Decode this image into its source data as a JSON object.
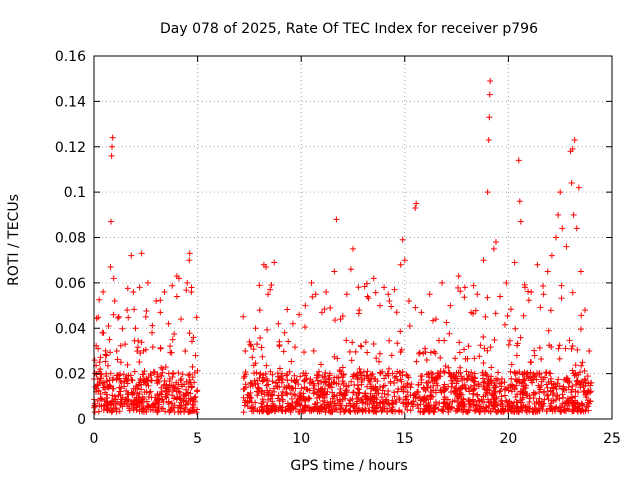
{
  "chart_data": {
    "type": "scatter",
    "title": "Day 078 of 2025, Rate Of TEC Index for receiver p796",
    "xlabel": "GPS time / hours",
    "ylabel": "ROTI / TECUs",
    "xlim": [
      0,
      25
    ],
    "ylim": [
      0,
      0.16
    ],
    "grid": true,
    "marker": "+",
    "color": "#ff0000",
    "x_ticks": [
      {
        "value": 0,
        "label": "0"
      },
      {
        "value": 5,
        "label": "5"
      },
      {
        "value": 10,
        "label": "10"
      },
      {
        "value": 15,
        "label": "15"
      },
      {
        "value": 20,
        "label": "20"
      },
      {
        "value": 25,
        "label": "25"
      }
    ],
    "y_ticks": [
      {
        "value": 0,
        "label": "0"
      },
      {
        "value": 0.02,
        "label": "0.02"
      },
      {
        "value": 0.04,
        "label": "0.04"
      },
      {
        "value": 0.06,
        "label": "0.06"
      },
      {
        "value": 0.08,
        "label": "0.08"
      },
      {
        "value": 0.1,
        "label": "0.1"
      },
      {
        "value": 0.12,
        "label": "0.12"
      },
      {
        "value": 0.14,
        "label": "0.14"
      },
      {
        "value": 0.16,
        "label": "0.16"
      }
    ],
    "series": [
      {
        "name": "ROTI",
        "segments": [
          [
            0.0,
            5.0
          ],
          [
            7.2,
            24.0
          ]
        ],
        "points": [
          [
            0.1,
            0.012
          ],
          [
            0.2,
            0.031
          ],
          [
            0.3,
            0.022
          ],
          [
            0.4,
            0.038
          ],
          [
            0.5,
            0.015
          ],
          [
            0.6,
            0.028
          ],
          [
            0.7,
            0.041
          ],
          [
            0.75,
            0.035
          ],
          [
            0.8,
            0.067
          ],
          [
            0.82,
            0.087
          ],
          [
            0.85,
            0.116
          ],
          [
            0.87,
            0.12
          ],
          [
            0.9,
            0.124
          ],
          [
            0.95,
            0.062
          ],
          [
            1.0,
            0.052
          ],
          [
            1.1,
            0.03
          ],
          [
            1.2,
            0.045
          ],
          [
            1.3,
            0.025
          ],
          [
            1.5,
            0.033
          ],
          [
            1.6,
            0.048
          ],
          [
            1.8,
            0.072
          ],
          [
            1.9,
            0.056
          ],
          [
            2.0,
            0.04
          ],
          [
            2.2,
            0.058
          ],
          [
            2.3,
            0.073
          ],
          [
            2.5,
            0.045
          ],
          [
            2.6,
            0.06
          ],
          [
            2.8,
            0.038
          ],
          [
            3.0,
            0.052
          ],
          [
            3.2,
            0.047
          ],
          [
            3.4,
            0.056
          ],
          [
            3.6,
            0.042
          ],
          [
            3.8,
            0.035
          ],
          [
            4.0,
            0.063
          ],
          [
            4.1,
            0.062
          ],
          [
            4.2,
            0.044
          ],
          [
            4.4,
            0.03
          ],
          [
            4.5,
            0.06
          ],
          [
            4.6,
            0.07
          ],
          [
            4.62,
            0.073
          ],
          [
            4.7,
            0.056
          ],
          [
            4.8,
            0.036
          ],
          [
            4.9,
            0.028
          ],
          [
            7.3,
            0.03
          ],
          [
            7.5,
            0.034
          ],
          [
            7.8,
            0.04
          ],
          [
            8.0,
            0.048
          ],
          [
            8.2,
            0.068
          ],
          [
            8.3,
            0.067
          ],
          [
            8.4,
            0.055
          ],
          [
            8.5,
            0.057
          ],
          [
            8.7,
            0.069
          ],
          [
            8.9,
            0.042
          ],
          [
            9.2,
            0.038
          ],
          [
            9.6,
            0.042
          ],
          [
            9.9,
            0.046
          ],
          [
            10.2,
            0.05
          ],
          [
            10.5,
            0.06
          ],
          [
            10.7,
            0.055
          ],
          [
            11.0,
            0.047
          ],
          [
            11.2,
            0.056
          ],
          [
            11.4,
            0.049
          ],
          [
            11.6,
            0.065
          ],
          [
            11.7,
            0.088
          ],
          [
            11.9,
            0.044
          ],
          [
            12.2,
            0.055
          ],
          [
            12.4,
            0.066
          ],
          [
            12.5,
            0.075
          ],
          [
            12.8,
            0.048
          ],
          [
            13.2,
            0.054
          ],
          [
            13.5,
            0.062
          ],
          [
            13.8,
            0.05
          ],
          [
            14.0,
            0.058
          ],
          [
            14.2,
            0.055
          ],
          [
            14.5,
            0.057
          ],
          [
            14.8,
            0.068
          ],
          [
            14.9,
            0.079
          ],
          [
            15.0,
            0.07
          ],
          [
            15.2,
            0.052
          ],
          [
            15.5,
            0.093
          ],
          [
            15.55,
            0.095
          ],
          [
            15.8,
            0.047
          ],
          [
            16.2,
            0.055
          ],
          [
            16.5,
            0.044
          ],
          [
            16.8,
            0.06
          ],
          [
            17.2,
            0.05
          ],
          [
            17.6,
            0.063
          ],
          [
            17.9,
            0.058
          ],
          [
            18.2,
            0.047
          ],
          [
            18.5,
            0.055
          ],
          [
            18.8,
            0.07
          ],
          [
            19.0,
            0.1
          ],
          [
            19.05,
            0.123
          ],
          [
            19.08,
            0.133
          ],
          [
            19.1,
            0.143
          ],
          [
            19.12,
            0.149
          ],
          [
            19.3,
            0.075
          ],
          [
            19.4,
            0.078
          ],
          [
            19.6,
            0.054
          ],
          [
            19.9,
            0.06
          ],
          [
            20.3,
            0.069
          ],
          [
            20.5,
            0.114
          ],
          [
            20.55,
            0.096
          ],
          [
            20.6,
            0.087
          ],
          [
            20.8,
            0.058
          ],
          [
            21.1,
            0.056
          ],
          [
            21.4,
            0.068
          ],
          [
            21.7,
            0.055
          ],
          [
            21.9,
            0.065
          ],
          [
            22.1,
            0.072
          ],
          [
            22.3,
            0.08
          ],
          [
            22.4,
            0.09
          ],
          [
            22.5,
            0.1
          ],
          [
            22.6,
            0.084
          ],
          [
            22.8,
            0.076
          ],
          [
            23.0,
            0.118
          ],
          [
            23.05,
            0.104
          ],
          [
            23.1,
            0.119
          ],
          [
            23.15,
            0.09
          ],
          [
            23.2,
            0.123
          ],
          [
            23.3,
            0.084
          ],
          [
            23.4,
            0.102
          ],
          [
            23.5,
            0.065
          ],
          [
            23.7,
            0.048
          ],
          [
            23.9,
            0.03
          ]
        ],
        "dense_band": {
          "typical_min": 0.003,
          "typical_max": 0.035,
          "outlier_max": 0.06
        }
      }
    ]
  }
}
